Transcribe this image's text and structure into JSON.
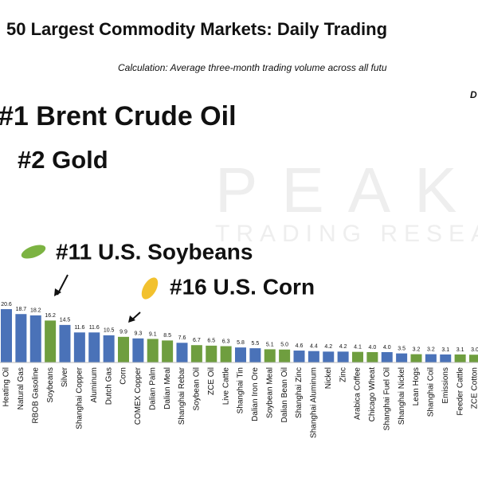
{
  "chart_data": {
    "type": "bar",
    "title": "50 Largest Commodity Markets: Daily Trading",
    "subtitle": "Calculation: Average three-month trading volume across all futu",
    "corner_note": "D",
    "watermark": [
      "PEAK",
      "TRADING RESEARC"
    ],
    "annotations": [
      "#1 Brent Crude Oil",
      "#2 Gold",
      "#11 U.S. Soybeans",
      "#16 U.S. Corn"
    ],
    "categories": [
      "Heating Oil",
      "Natural Gas",
      "RBOB Gasoline",
      "Soybeans",
      "Silver",
      "Shanghai Copper",
      "Aluminum",
      "Dutch Gas",
      "Corn",
      "COMEX Copper",
      "Dalian Palm",
      "Dalian Meal",
      "Shanghai Rebar",
      "Soybean Oil",
      "ZCE Oil",
      "Live Cattle",
      "Shanghai Tin",
      "Dalian Iron Ore",
      "Soybean Meal",
      "Dalian Bean Oil",
      "Shanghai Zinc",
      "Shanghai Aluminum",
      "Nickel",
      "Zinc",
      "Arabica Coffee",
      "Chicago Wheat",
      "Shanghai Fuel Oil",
      "Shanghai Nickel",
      "Lean Hogs",
      "Shanghai Coil",
      "Emissions",
      "Feeder Cattle",
      "ZCE Cotton"
    ],
    "values": [
      20.6,
      18.7,
      18.2,
      16.2,
      14.5,
      11.6,
      11.6,
      10.5,
      9.9,
      9.3,
      9.1,
      8.5,
      7.6,
      6.7,
      6.5,
      6.3,
      5.8,
      5.5,
      5.1,
      5.0,
      4.6,
      4.4,
      4.2,
      4.2,
      4.1,
      4.0,
      4.0,
      3.5,
      3.2,
      3.2,
      3.1,
      3.1,
      3.0
    ],
    "value_labels": [
      "20.6",
      "18.7",
      "18.2",
      "16.2",
      "14.5",
      "11.6",
      "11.6",
      "10.5",
      "9.9",
      "9.3",
      "9.1",
      "8.5",
      "7.6",
      "6.7",
      "6.5",
      "6.3",
      "5.8",
      "5.5",
      "5.1",
      "5.0",
      "4.6",
      "4.4",
      "4.2",
      "4.2",
      "4.1",
      "4.0",
      "4.0",
      "3.5",
      "3.2",
      "3.2",
      "3.1",
      "3.1",
      "3.0"
    ],
    "colors": [
      "#4a72b8",
      "#4a72b8",
      "#4a72b8",
      "#6f9e3f",
      "#4a72b8",
      "#4a72b8",
      "#4a72b8",
      "#4a72b8",
      "#6f9e3f",
      "#4a72b8",
      "#6f9e3f",
      "#6f9e3f",
      "#4a72b8",
      "#6f9e3f",
      "#6f9e3f",
      "#6f9e3f",
      "#4a72b8",
      "#4a72b8",
      "#6f9e3f",
      "#6f9e3f",
      "#4a72b8",
      "#4a72b8",
      "#4a72b8",
      "#4a72b8",
      "#6f9e3f",
      "#6f9e3f",
      "#4a72b8",
      "#4a72b8",
      "#6f9e3f",
      "#4a72b8",
      "#4a72b8",
      "#6f9e3f",
      "#6f9e3f"
    ],
    "ylim": [
      0,
      140
    ]
  }
}
